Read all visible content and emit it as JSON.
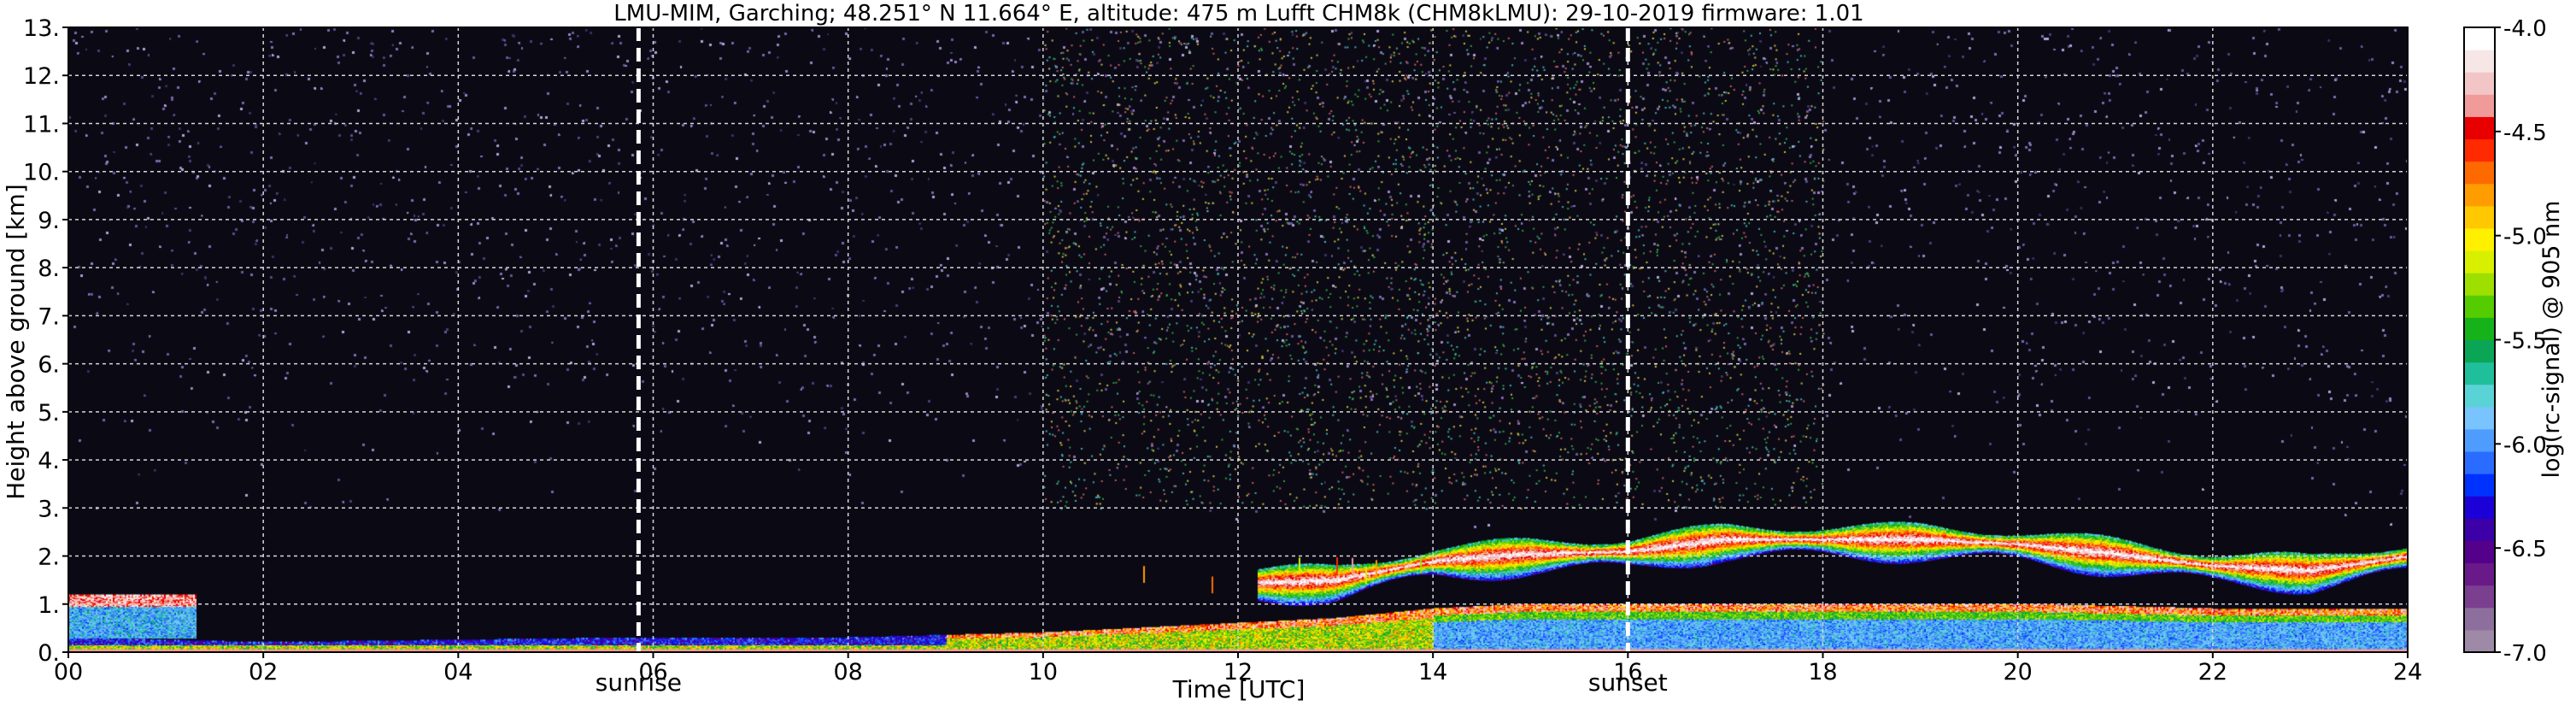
{
  "chart_data": {
    "type": "heatmap",
    "title": "LMU-MIM, Garching; 48.251° N 11.664° E, altitude: 475 m    Lufft CHM8k (CHM8kLMU): 29-10-2019    firmware: 1.01",
    "xlabel": "Time [UTC]",
    "ylabel": "Height above ground [km]",
    "colorbar_label": "log(rc-signal) @ 905 nm",
    "xlim": [
      0,
      24
    ],
    "ylim": [
      0,
      13
    ],
    "x_ticks": [
      0,
      2,
      4,
      6,
      8,
      10,
      12,
      14,
      16,
      18,
      20,
      22,
      24
    ],
    "x_tick_labels": [
      "00",
      "02",
      "04",
      "06",
      "08",
      "10",
      "12",
      "14",
      "16",
      "18",
      "20",
      "22",
      "24"
    ],
    "y_ticks": [
      0,
      1,
      2,
      3,
      4,
      5,
      6,
      7,
      8,
      9,
      10,
      11,
      12,
      13
    ],
    "y_tick_labels": [
      "0.",
      "1.",
      "2.",
      "3.",
      "4.",
      "5.",
      "6.",
      "7.",
      "8.",
      "9.",
      "10.",
      "11.",
      "12.",
      "13."
    ],
    "grid": true,
    "colorbar": {
      "range": [
        -7.0,
        -4.0
      ],
      "ticks": [
        -4.0,
        -4.5,
        -5.0,
        -5.5,
        -6.0,
        -6.5,
        -7.0
      ],
      "tick_labels": [
        "-4.0",
        "-4.5",
        "-5.0",
        "-5.5",
        "-6.0",
        "-6.5",
        "-7.0"
      ],
      "colors_low_to_high": [
        "#9e8aa6",
        "#8d6f9d",
        "#7a3f8f",
        "#6a1a88",
        "#55008a",
        "#3b00a8",
        "#1c00d8",
        "#0032ff",
        "#2a6cff",
        "#4f9cff",
        "#79c3ff",
        "#5ad3d6",
        "#1fbf9b",
        "#0aa655",
        "#16b21a",
        "#55cc00",
        "#9de000",
        "#d9ef00",
        "#fff000",
        "#ffc800",
        "#ff9c00",
        "#ff6a00",
        "#ff2a00",
        "#e80000",
        "#f09a9a",
        "#f2c6c6",
        "#f7e6e6",
        "#ffffff"
      ]
    },
    "markers": [
      {
        "time": 5.85,
        "label": "sunrise"
      },
      {
        "time": 16.0,
        "label": "sunset"
      }
    ],
    "features": {
      "noise_background_upper_km": [
        3.0,
        13.0
      ],
      "nocturnal_layer_0_1.3h": {
        "start": 0.0,
        "end": 1.3,
        "top_km": 1.2
      },
      "boundary_layer_top_km": [
        [
          0,
          0.3
        ],
        [
          2,
          0.2
        ],
        [
          4,
          0.25
        ],
        [
          6,
          0.3
        ],
        [
          8,
          0.3
        ],
        [
          10,
          0.4
        ],
        [
          12,
          0.6
        ],
        [
          13,
          0.7
        ],
        [
          14,
          0.9
        ],
        [
          15,
          1.0
        ],
        [
          16,
          1.0
        ],
        [
          18,
          1.0
        ],
        [
          20,
          1.0
        ],
        [
          22,
          0.9
        ],
        [
          24,
          0.9
        ]
      ],
      "cloud_layer_km": [
        [
          12.2,
          1.45
        ],
        [
          13.0,
          1.5
        ],
        [
          14.0,
          1.9
        ],
        [
          15.0,
          2.05
        ],
        [
          16.0,
          2.1
        ],
        [
          17.0,
          2.35
        ],
        [
          18.0,
          2.35
        ],
        [
          19.0,
          2.35
        ],
        [
          20.0,
          2.25
        ],
        [
          21.0,
          2.05
        ],
        [
          22.0,
          1.8
        ],
        [
          23.0,
          1.7
        ],
        [
          24.0,
          2.0
        ]
      ]
    }
  }
}
